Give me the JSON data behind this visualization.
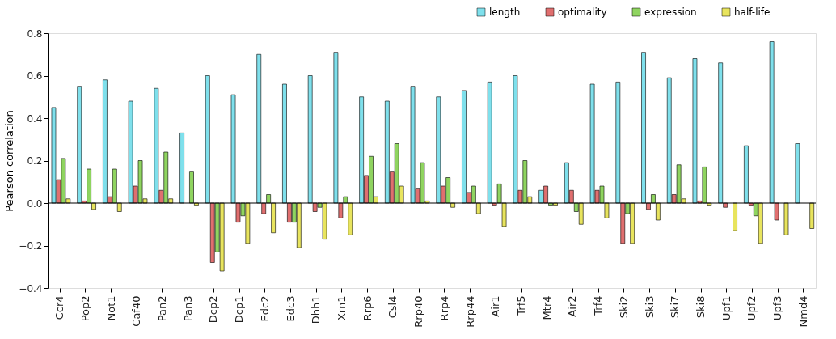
{
  "chart_data": {
    "type": "bar",
    "ylabel": "Pearson correlation",
    "categories": [
      "Ccr4",
      "Pop2",
      "Not1",
      "Caf40",
      "Pan2",
      "Pan3",
      "Dcp2",
      "Dcp1",
      "Edc2",
      "Edc3",
      "Dhh1",
      "Xrn1",
      "Rrp6",
      "Csl4",
      "Rrp40",
      "Rrp4",
      "Rrp44",
      "Air1",
      "Trf5",
      "Mtr4",
      "Air2",
      "Trf4",
      "Ski2",
      "Ski3",
      "Ski7",
      "Ski8",
      "Upf1",
      "Upf2",
      "Upf3",
      "Nmd4"
    ],
    "series": [
      {
        "name": "length",
        "color": "#7fe0ec",
        "values": [
          0.45,
          0.55,
          0.58,
          0.48,
          0.54,
          0.33,
          0.6,
          0.51,
          0.7,
          0.56,
          0.6,
          0.71,
          0.5,
          0.48,
          0.55,
          0.5,
          0.53,
          0.57,
          0.6,
          0.06,
          0.19,
          0.56,
          0.57,
          0.71,
          0.59,
          0.68,
          0.66,
          0.27,
          0.76,
          0.28
        ]
      },
      {
        "name": "optimality",
        "color": "#e06f6f",
        "values": [
          0.11,
          0.01,
          0.03,
          0.08,
          0.06,
          0.0,
          -0.28,
          -0.09,
          -0.05,
          -0.09,
          -0.04,
          -0.07,
          0.13,
          0.15,
          0.07,
          0.08,
          0.05,
          -0.01,
          0.06,
          0.08,
          0.06,
          0.06,
          -0.19,
          -0.03,
          0.04,
          0.01,
          -0.02,
          -0.01,
          -0.08,
          0.0
        ]
      },
      {
        "name": "expression",
        "color": "#8fd460",
        "values": [
          0.21,
          0.16,
          0.16,
          0.2,
          0.24,
          0.15,
          -0.23,
          -0.06,
          0.04,
          -0.09,
          -0.02,
          0.03,
          0.22,
          0.28,
          0.19,
          0.12,
          0.08,
          0.09,
          0.2,
          -0.01,
          -0.04,
          0.08,
          -0.05,
          0.04,
          0.18,
          0.17,
          0.0,
          -0.06,
          0.0,
          0.0
        ]
      },
      {
        "name": "half-life",
        "color": "#e8e45e",
        "values": [
          0.02,
          -0.03,
          -0.04,
          0.02,
          0.02,
          -0.01,
          -0.32,
          -0.19,
          -0.14,
          -0.21,
          -0.17,
          -0.15,
          0.03,
          0.08,
          0.01,
          -0.02,
          -0.05,
          -0.11,
          0.03,
          -0.01,
          -0.1,
          -0.07,
          -0.19,
          -0.08,
          0.02,
          -0.01,
          -0.13,
          -0.19,
          -0.15,
          -0.12
        ]
      }
    ],
    "ylim": [
      -0.4,
      0.8
    ],
    "yticks": [
      {
        "value": -0.4,
        "label": "−0.4"
      },
      {
        "value": -0.2,
        "label": "−0.2"
      },
      {
        "value": 0,
        "label": "0.0"
      },
      0.2,
      0.4,
      0.6,
      0.8
    ],
    "ref_lines": [
      {
        "axis": "y",
        "value": 0
      }
    ],
    "legend": "top right",
    "grid": false
  }
}
